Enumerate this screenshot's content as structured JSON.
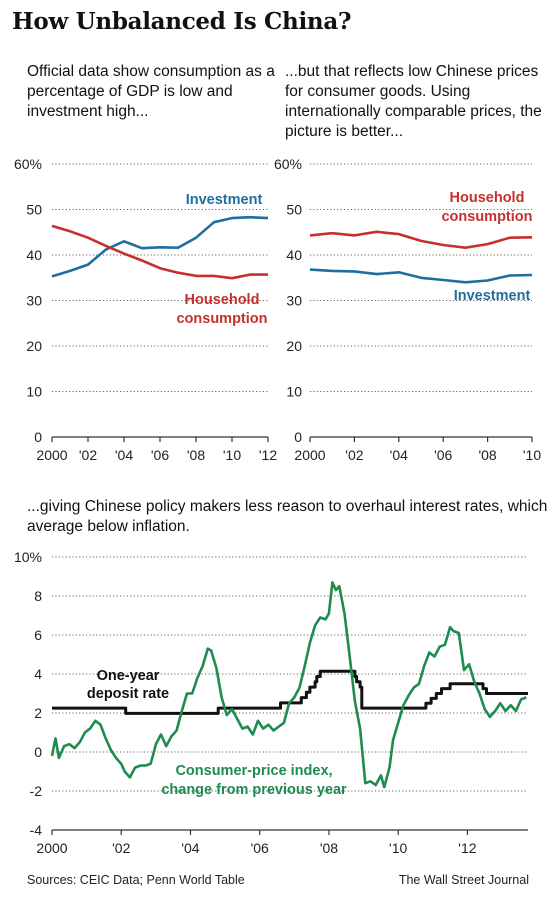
{
  "title": "How Unbalanced Is China?",
  "sources": "Sources: CEIC Data; Penn World Table",
  "credit": "The Wall Street Journal",
  "colors": {
    "investment": "#1f6f9e",
    "household": "#c6302c",
    "cpi": "#1e8b4f",
    "deposit": "#111111"
  },
  "chart_data": [
    {
      "type": "line",
      "subtitle": "Official data show consumption as a percentage of GDP is low and investment high...",
      "x_tick_labels": [
        "2000",
        "'02",
        "'04",
        "'06",
        "'08",
        "'10",
        "'12"
      ],
      "x_ticks": [
        2000,
        2002,
        2004,
        2006,
        2008,
        2010,
        2012
      ],
      "y_tick_labels": [
        "60%",
        "50",
        "40",
        "30",
        "20",
        "10",
        "0"
      ],
      "y_ticks": [
        60,
        50,
        40,
        30,
        20,
        10,
        0
      ],
      "xlim": [
        2000,
        2012
      ],
      "ylim": [
        0,
        60
      ],
      "x": [
        2000,
        2001,
        2002,
        2003,
        2004,
        2005,
        2006,
        2007,
        2008,
        2009,
        2010,
        2011,
        2012
      ],
      "series": [
        {
          "name": "Investment",
          "label_text": "Investment",
          "color_key": "investment",
          "values": [
            35.3,
            36.5,
            37.9,
            41.2,
            43.0,
            41.5,
            41.7,
            41.6,
            43.8,
            47.2,
            48.1,
            48.3,
            48.1
          ]
        },
        {
          "name": "Household consumption",
          "label_text": [
            "Household",
            "consumption"
          ],
          "color_key": "household",
          "values": [
            46.4,
            45.2,
            43.8,
            42.0,
            40.3,
            38.8,
            37.1,
            36.1,
            35.4,
            35.4,
            34.9,
            35.7,
            35.7
          ]
        }
      ]
    },
    {
      "type": "line",
      "subtitle": "...but that reflects low Chinese prices for consumer goods. Using internationally comparable prices, the picture is better...",
      "x_tick_labels": [
        "2000",
        "'02",
        "'04",
        "'06",
        "'08",
        "'10"
      ],
      "x_ticks": [
        2000,
        2002,
        2004,
        2006,
        2008,
        2010
      ],
      "y_tick_labels": [
        "60%",
        "50",
        "40",
        "30",
        "20",
        "10",
        "0"
      ],
      "y_ticks": [
        60,
        50,
        40,
        30,
        20,
        10,
        0
      ],
      "xlim": [
        2000,
        2010
      ],
      "ylim": [
        0,
        60
      ],
      "x": [
        2000,
        2001,
        2002,
        2003,
        2004,
        2005,
        2006,
        2007,
        2008,
        2009,
        2010
      ],
      "series": [
        {
          "name": "Household consumption",
          "label_text": [
            "Household",
            "consumption"
          ],
          "color_key": "household",
          "values": [
            44.3,
            44.8,
            44.3,
            45.1,
            44.6,
            43.1,
            42.2,
            41.6,
            42.4,
            43.8,
            43.9
          ]
        },
        {
          "name": "Investment",
          "label_text": "Investment",
          "color_key": "investment",
          "values": [
            36.8,
            36.5,
            36.4,
            35.8,
            36.2,
            35.0,
            34.5,
            34.0,
            34.4,
            35.5,
            35.6
          ]
        }
      ]
    },
    {
      "type": "line",
      "subtitle": "...giving Chinese policy makers less reason to overhaul interest rates, which average below inflation.",
      "x_tick_labels": [
        "2000",
        "'02",
        "'04",
        "'06",
        "'08",
        "'10",
        "'12"
      ],
      "x_ticks": [
        2000,
        2002,
        2004,
        2006,
        2008,
        2010,
        2012
      ],
      "y_tick_labels": [
        "10%",
        "8",
        "6",
        "4",
        "2",
        "0",
        "-2",
        "-4"
      ],
      "y_ticks": [
        10,
        8,
        6,
        4,
        2,
        0,
        -2,
        -4
      ],
      "xlim": [
        2000,
        2013.75
      ],
      "ylim": [
        -4,
        10
      ],
      "series": [
        {
          "name": "One-year deposit rate",
          "label_text": [
            "One-year",
            "deposit rate"
          ],
          "color_key": "deposit",
          "step": true,
          "x": [
            2000,
            2002.13,
            2004.8,
            2006.6,
            2007.2,
            2007.35,
            2007.45,
            2007.6,
            2007.65,
            2007.75,
            2008.75,
            2008.8,
            2008.9,
            2008.95,
            2010.8,
            2010.95,
            2011.1,
            2011.25,
            2011.5,
            2012.45,
            2012.55,
            2013.6
          ],
          "values": [
            2.25,
            1.98,
            2.25,
            2.52,
            2.79,
            3.06,
            3.33,
            3.6,
            3.87,
            4.14,
            3.87,
            3.6,
            3.33,
            2.25,
            2.5,
            2.75,
            3.0,
            3.25,
            3.5,
            3.25,
            3.0,
            3.0
          ]
        },
        {
          "name": "Consumer-price index, change from previous year",
          "label_text": [
            "Consumer-price index,",
            "change from previous year"
          ],
          "color_key": "cpi",
          "step": false,
          "x": [
            2000.0,
            2000.1,
            2000.2,
            2000.35,
            2000.5,
            2000.65,
            2000.8,
            2000.95,
            2001.1,
            2001.25,
            2001.4,
            2001.55,
            2001.7,
            2001.85,
            2002.0,
            2002.1,
            2002.25,
            2002.4,
            2002.55,
            2002.7,
            2002.85,
            2003.0,
            2003.15,
            2003.3,
            2003.45,
            2003.6,
            2003.75,
            2003.9,
            2004.05,
            2004.2,
            2004.35,
            2004.5,
            2004.6,
            2004.75,
            2004.9,
            2005.05,
            2005.2,
            2005.35,
            2005.5,
            2005.65,
            2005.8,
            2005.95,
            2006.1,
            2006.25,
            2006.4,
            2006.55,
            2006.7,
            2006.85,
            2007.0,
            2007.15,
            2007.3,
            2007.45,
            2007.6,
            2007.75,
            2007.9,
            2008.0,
            2008.1,
            2008.2,
            2008.3,
            2008.45,
            2008.6,
            2008.75,
            2008.9,
            2009.05,
            2009.2,
            2009.35,
            2009.5,
            2009.6,
            2009.75,
            2009.85,
            2010.0,
            2010.15,
            2010.3,
            2010.45,
            2010.6,
            2010.75,
            2010.9,
            2011.05,
            2011.2,
            2011.35,
            2011.5,
            2011.6,
            2011.75,
            2011.9,
            2012.05,
            2012.2,
            2012.35,
            2012.5,
            2012.65,
            2012.8,
            2012.95,
            2013.1,
            2013.25,
            2013.4,
            2013.55,
            2013.7
          ],
          "values": [
            -0.2,
            0.7,
            -0.3,
            0.3,
            0.4,
            0.2,
            0.5,
            1.0,
            1.2,
            1.6,
            1.4,
            0.7,
            0.1,
            -0.3,
            -0.6,
            -1.0,
            -1.3,
            -0.8,
            -0.7,
            -0.7,
            -0.6,
            0.4,
            0.9,
            0.3,
            0.8,
            1.1,
            2.1,
            3.0,
            3.0,
            3.8,
            4.4,
            5.3,
            5.2,
            4.3,
            2.8,
            1.9,
            2.2,
            1.7,
            1.2,
            1.3,
            0.9,
            1.6,
            1.2,
            1.4,
            1.1,
            1.3,
            1.5,
            2.5,
            2.8,
            3.3,
            4.4,
            5.6,
            6.5,
            6.9,
            6.8,
            7.1,
            8.7,
            8.3,
            8.5,
            7.1,
            4.9,
            2.6,
            1.2,
            -1.6,
            -1.5,
            -1.7,
            -1.2,
            -1.8,
            -0.8,
            0.6,
            1.5,
            2.4,
            2.9,
            3.3,
            3.5,
            4.4,
            5.1,
            4.9,
            5.4,
            5.5,
            6.4,
            6.2,
            6.1,
            4.2,
            4.5,
            3.6,
            3.0,
            2.2,
            1.8,
            2.1,
            2.5,
            2.1,
            2.4,
            2.1,
            2.7,
            2.8
          ]
        }
      ]
    }
  ]
}
